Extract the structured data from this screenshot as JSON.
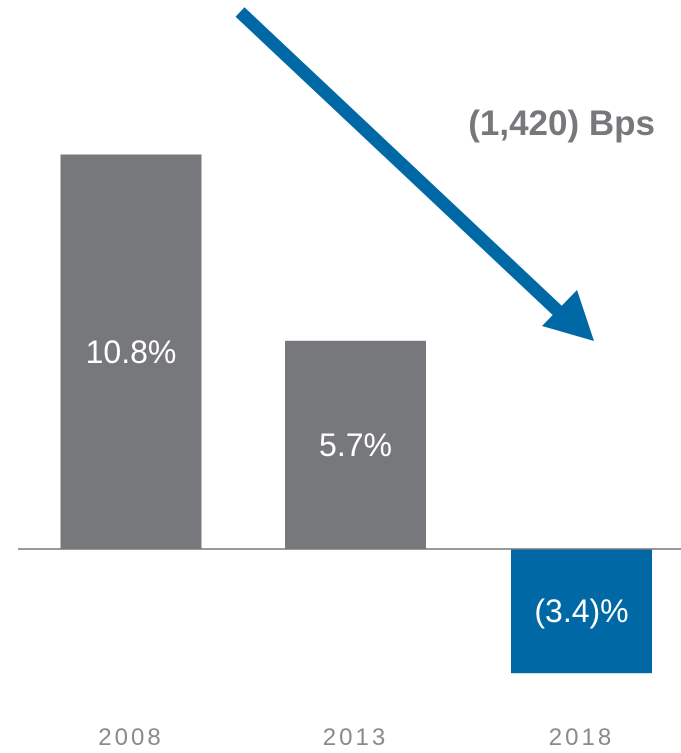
{
  "chart_data": {
    "type": "bar",
    "title": "",
    "xlabel": "",
    "ylabel": "",
    "categories": [
      "2008",
      "2013",
      "2018"
    ],
    "values": [
      10.8,
      5.7,
      -3.4
    ],
    "value_labels": [
      "10.8%",
      "5.7%",
      "(3.4)%"
    ],
    "units": "%",
    "ylim": [
      -4,
      12
    ],
    "grid": false,
    "legend": "none",
    "colors": {
      "positive": "#77787b",
      "negative": "#0068a5",
      "arrow": "#0068a5",
      "axis": "#77787b",
      "annotation_text": "#77787b",
      "tick_text": "#8a8a8c"
    },
    "annotation": {
      "text": "(1,420) Bps",
      "shape": "downward arrow",
      "direction": "down-right"
    }
  }
}
